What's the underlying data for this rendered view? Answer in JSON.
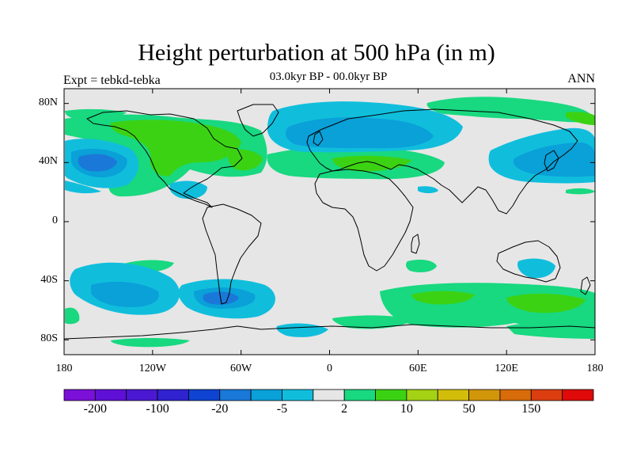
{
  "title": "Height perturbation at 500 hPa (in m)",
  "subtitle": "03.0kyr BP - 00.0kyr BP",
  "left_label": "Expt = tebkd-tebka",
  "right_label": "ANN",
  "map": {
    "lon_range": [
      -180,
      180
    ],
    "lat_range": [
      -90,
      90
    ],
    "x_ticks": [
      {
        "lon": -180,
        "label": "180"
      },
      {
        "lon": -120,
        "label": "120W"
      },
      {
        "lon": -60,
        "label": "60W"
      },
      {
        "lon": 0,
        "label": "0"
      },
      {
        "lon": 60,
        "label": "60E"
      },
      {
        "lon": 120,
        "label": "120E"
      },
      {
        "lon": 180,
        "label": "180"
      }
    ],
    "y_ticks": [
      {
        "lat": 80,
        "label": "80N"
      },
      {
        "lat": 40,
        "label": "40N"
      },
      {
        "lat": 0,
        "label": "0"
      },
      {
        "lat": -40,
        "label": "40S"
      },
      {
        "lat": -80,
        "label": "80S"
      }
    ],
    "background_color": "#e6e6e6"
  },
  "colorbar": {
    "colors": [
      "#7b10d8",
      "#5f10d6",
      "#4a18d2",
      "#2f22cf",
      "#0f44d2",
      "#1a78d8",
      "#0aa0d8",
      "#10bedc",
      "#e6e6e6",
      "#18d880",
      "#3cd214",
      "#a4d214",
      "#d2be0a",
      "#d2960a",
      "#d86c0a",
      "#dc3e10",
      "#e00a0a"
    ],
    "labels": [
      {
        "boundary": 1,
        "text": "-200"
      },
      {
        "boundary": 3,
        "text": "-100"
      },
      {
        "boundary": 5,
        "text": "-20"
      },
      {
        "boundary": 7,
        "text": "-5"
      },
      {
        "boundary": 9,
        "text": "2"
      },
      {
        "boundary": 11,
        "text": "10"
      },
      {
        "boundary": 13,
        "text": "50"
      },
      {
        "boundary": 15,
        "text": "150"
      }
    ]
  }
}
